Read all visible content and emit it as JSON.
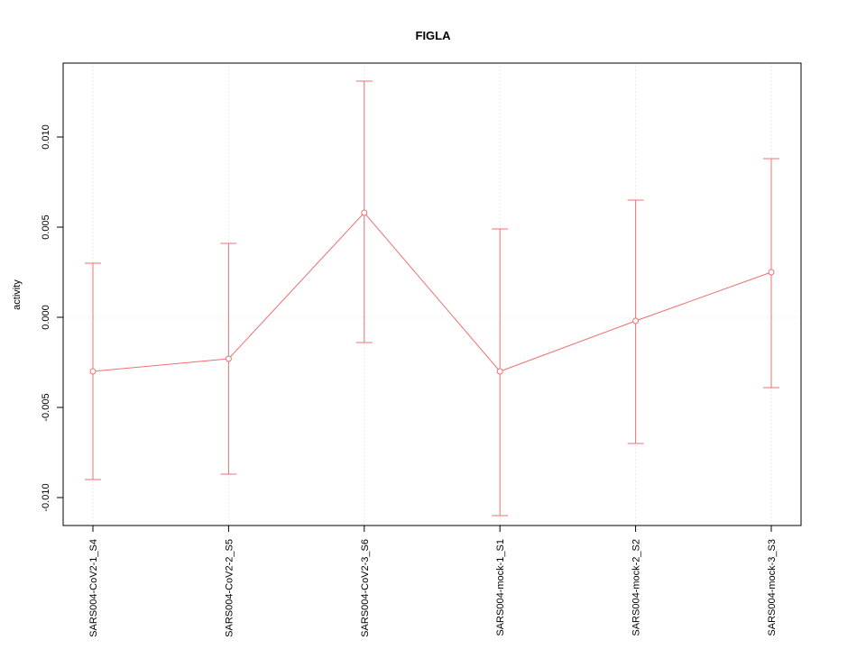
{
  "chart_data": {
    "type": "line",
    "title": "FIGLA",
    "xlabel": "",
    "ylabel": "activity",
    "categories": [
      "SARS004-CoV2-1_S4",
      "SARS004-CoV2-2_S5",
      "SARS004-CoV2-3_S6",
      "SARS004-mock-1_S1",
      "SARS004-mock-2_S2",
      "SARS004-mock-3_S3"
    ],
    "series": [
      {
        "name": "activity",
        "color": "#ee7070",
        "values": [
          -0.003,
          -0.0023,
          0.0058,
          -0.003,
          -0.0002,
          0.0025
        ],
        "lower": [
          -0.009,
          -0.0087,
          -0.0014,
          -0.011,
          -0.007,
          -0.0039
        ],
        "upper": [
          0.003,
          0.0041,
          0.0131,
          0.0049,
          0.0065,
          0.0088
        ]
      }
    ],
    "yticks": [
      -0.01,
      -0.005,
      0.0,
      0.005,
      0.01
    ],
    "ytick_labels": [
      "-0.010",
      "-0.005",
      "0.000",
      "0.005",
      "0.010"
    ],
    "ylim": [
      -0.01155,
      0.0141
    ],
    "grid": {
      "vertical_dotted": true,
      "zero_line_dotted": true,
      "color": "#dcdcdc"
    },
    "frame_color": "#000000",
    "legend": "none"
  }
}
